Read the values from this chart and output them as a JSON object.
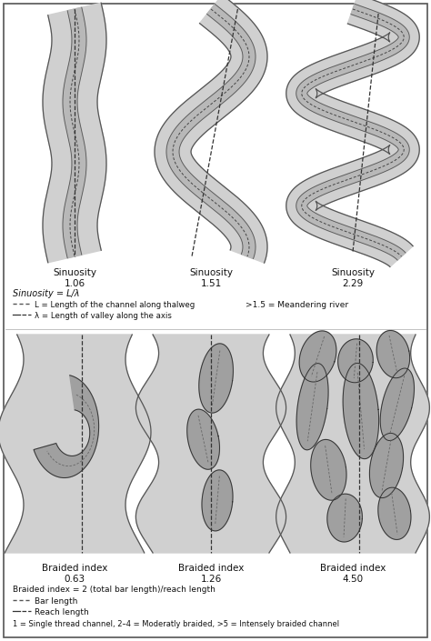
{
  "text_color": "#111111",
  "outer_fill": "#d0d0d0",
  "inner_fill": "#c0c0c0",
  "bar_fill": "#909090",
  "border_color": "#333333",
  "sinuosity_labels": [
    "Sinuosity\n1.06",
    "Sinuosity\n1.51",
    "Sinuosity\n2.29"
  ],
  "braided_labels": [
    "Braided index\n0.63",
    "Braided index\n1.26",
    "Braided index\n4.50"
  ],
  "sin_formula": "Sinuosity = L/λ",
  "sin_L_label": "L = Length of the channel along thalweg",
  "sin_lam_label": "λ = Length of valley along the axis",
  "sin_note": ">1.5 = Meandering river",
  "braid_formula": "Braided index = 2 (total bar length)/reach length",
  "braid_bar_label": "Bar length",
  "braid_reach_label": "Reach length",
  "braid_note": "1 = Single thread channel, 2–4 = Moderatly braided, >5 = Intensely braided channel"
}
